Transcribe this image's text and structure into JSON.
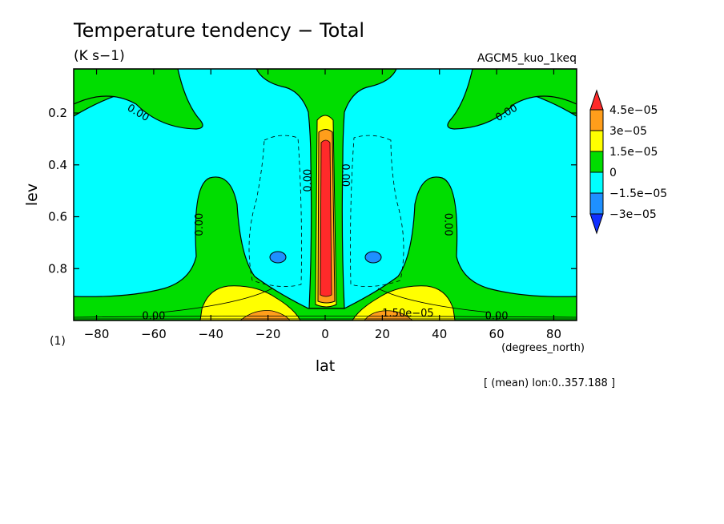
{
  "chart_data": {
    "type": "heatmap",
    "title": "Temperature tendency − Total",
    "units": "(K s−1)",
    "experiment": "AGCM5_kuo_1keq",
    "xlabel": "lat",
    "ylabel": "lev",
    "x_units": "(degrees_north)",
    "panel_label": "(1)",
    "footnote": "[ (mean) lon:0..357.188 ]",
    "xlim": [
      -88,
      88
    ],
    "ylim": [
      1.0,
      0.03
    ],
    "x_ticks": [
      -80,
      -60,
      -40,
      -20,
      0,
      20,
      40,
      60,
      80
    ],
    "x_tick_labels": [
      "−80",
      "−60",
      "−40",
      "−20",
      "0",
      "20",
      "40",
      "60",
      "80"
    ],
    "y_ticks": [
      0.2,
      0.4,
      0.6,
      0.8
    ],
    "y_tick_labels": [
      "0.2",
      "0.4",
      "0.6",
      "0.8"
    ],
    "colorbar": {
      "labels": [
        "4.5e−05",
        "3e−05",
        "1.5e−05",
        "0",
        "−1.5e−05",
        "−3e−05"
      ],
      "bins": [
        {
          "from": 4.5e-05,
          "to": null,
          "color": "#ff2a2a"
        },
        {
          "from": 3e-05,
          "to": 4.5e-05,
          "color": "#ff9e1b"
        },
        {
          "from": 1.5e-05,
          "to": 3e-05,
          "color": "#ffff00"
        },
        {
          "from": 0.0,
          "to": 1.5e-05,
          "color": "#00dd00"
        },
        {
          "from": -1.5e-05,
          "to": 0.0,
          "color": "#00ffff"
        },
        {
          "from": -3e-05,
          "to": -1.5e-05,
          "color": "#1e90ff"
        },
        {
          "from": null,
          "to": -3e-05,
          "color": "#1030ff"
        }
      ]
    },
    "contour_labels": [
      {
        "text": "0.00",
        "lat": -66,
        "lev": 0.21
      },
      {
        "text": "0.00",
        "lat": 64,
        "lev": 0.21
      },
      {
        "text": "0.00",
        "lat": -44,
        "lev": 0.63
      },
      {
        "text": "0.00",
        "lat": 43,
        "lev": 0.63
      },
      {
        "text": "0.00",
        "lat": -6,
        "lev": 0.46
      },
      {
        "text": "0.00",
        "lat": 7,
        "lev": 0.44
      },
      {
        "text": "0.00",
        "lat": -60,
        "lev": 0.995
      },
      {
        "text": "0.00",
        "lat": 60,
        "lev": 0.995
      },
      {
        "text": "1.50e−05",
        "lat": 29,
        "lev": 0.985
      }
    ]
  }
}
